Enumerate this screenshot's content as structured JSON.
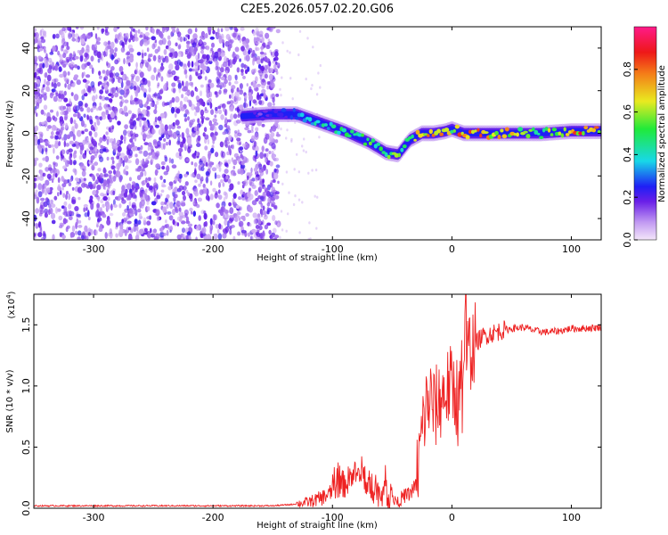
{
  "title": "C2E5.2026.057.02.20.G06",
  "chart_data": [
    {
      "type": "heatmap",
      "xlabel": "Height of straight line (km)",
      "ylabel": "Frequency (Hz)",
      "xlim": [
        -350,
        125
      ],
      "ylim": [
        -50,
        50
      ],
      "xticks": [
        -300,
        -200,
        -100,
        0,
        100
      ],
      "xtick_labels": [
        "-300",
        "-200",
        "-100",
        "0",
        "100"
      ],
      "yticks": [
        -40,
        -20,
        0,
        20,
        40
      ],
      "ytick_labels": [
        "-40",
        "-20",
        "0",
        "20",
        "40"
      ],
      "colorbar": {
        "label": "Normalized spectral amplitude",
        "range": [
          0,
          1
        ],
        "ticks": [
          0.0,
          0.2,
          0.4,
          0.6,
          0.8
        ],
        "tick_labels": [
          "0.0",
          "0.2",
          "0.4",
          "0.6",
          "0.8"
        ]
      },
      "noise_region_x": [
        -350,
        -145
      ],
      "signal_track": {
        "x": [
          -175,
          -150,
          -130,
          -110,
          -90,
          -70,
          -55,
          -45,
          -35,
          -25,
          -15,
          -5,
          0,
          10,
          25,
          50,
          75,
          100,
          125
        ],
        "frequency_hz": [
          8,
          9,
          9,
          5,
          1,
          -4,
          -9,
          -10,
          -3,
          0,
          0,
          1,
          2,
          0,
          0,
          0,
          0,
          1,
          1
        ],
        "amplitude": [
          0.15,
          0.2,
          0.3,
          0.4,
          0.45,
          0.5,
          0.5,
          0.55,
          0.6,
          0.7,
          0.85,
          0.75,
          0.6,
          0.85,
          0.8,
          0.65,
          0.6,
          0.8,
          0.75
        ]
      }
    },
    {
      "type": "line",
      "xlabel": "Height of straight line (km)",
      "ylabel": "SNR (10 * v/v)",
      "scale_label": "(x10",
      "scale_exp": "4",
      "scale_close": ")",
      "xlim": [
        -350,
        125
      ],
      "ylim": [
        0,
        1.75
      ],
      "xticks": [
        -300,
        -200,
        -100,
        0,
        100
      ],
      "xtick_labels": [
        "-300",
        "-200",
        "-100",
        "0",
        "100"
      ],
      "yticks": [
        0.0,
        0.5,
        1.0,
        1.5
      ],
      "ytick_labels": [
        "0.0",
        "0.5",
        "1.0",
        "1.5"
      ],
      "series": [
        {
          "name": "SNR",
          "color": "#ee2222",
          "x": [
            -350,
            -300,
            -250,
            -200,
            -150,
            -135,
            -120,
            -110,
            -100,
            -95,
            -90,
            -85,
            -80,
            -75,
            -70,
            -65,
            -60,
            -55,
            -50,
            -45,
            -40,
            -35,
            -30,
            -27,
            -24,
            -21,
            -18,
            -15,
            -12,
            -9,
            -6,
            -3,
            0,
            3,
            6,
            9,
            12,
            15,
            20,
            25,
            30,
            40,
            50,
            60,
            70,
            80,
            90,
            100,
            110,
            125
          ],
          "y": [
            0.02,
            0.02,
            0.02,
            0.02,
            0.02,
            0.03,
            0.05,
            0.08,
            0.13,
            0.18,
            0.2,
            0.24,
            0.28,
            0.22,
            0.18,
            0.15,
            0.12,
            0.1,
            0.08,
            0.06,
            0.1,
            0.12,
            0.2,
            0.45,
            0.7,
            0.85,
            0.9,
            0.8,
            0.85,
            0.9,
            0.95,
            0.98,
            1.0,
            0.95,
            0.9,
            1.1,
            1.25,
            1.3,
            1.35,
            1.4,
            1.42,
            1.45,
            1.47,
            1.48,
            1.45,
            1.44,
            1.45,
            1.47,
            1.47,
            1.48
          ]
        }
      ]
    }
  ]
}
